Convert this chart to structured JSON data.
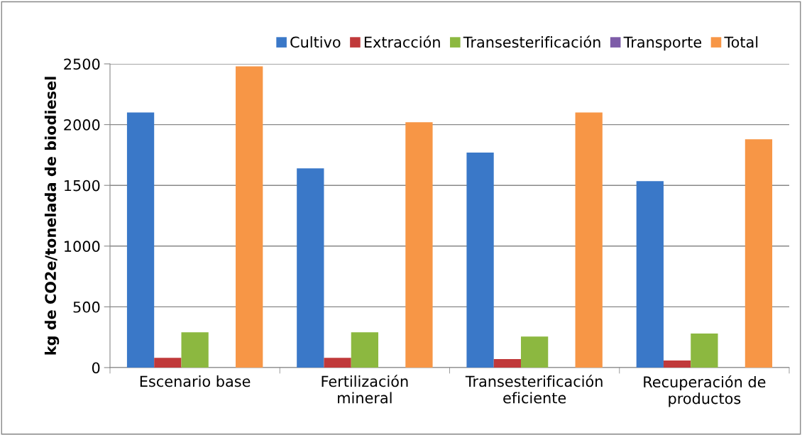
{
  "chart_data": {
    "type": "bar",
    "ylabel": "kg de CO2e/tonelada de biodiesel",
    "categories": [
      "Escenario base",
      "Fertilización\nmineral",
      "Transesterificación\neficiente",
      "Recuperación de\nproductos"
    ],
    "series": [
      {
        "name": "Cultivo",
        "color": "#3a78c8",
        "values": [
          2100,
          1640,
          1770,
          1535
        ]
      },
      {
        "name": "Extracción",
        "color": "#c0393a",
        "values": [
          80,
          80,
          70,
          58
        ]
      },
      {
        "name": "Transesterificación",
        "color": "#8cb840",
        "values": [
          290,
          290,
          255,
          280
        ]
      },
      {
        "name": "Transporte",
        "color": "#7d5ca8",
        "values": [
          null,
          null,
          null,
          null
        ]
      },
      {
        "name": "Total",
        "color": "#f79646",
        "values": [
          2480,
          2020,
          2100,
          1880
        ]
      }
    ],
    "ylim": [
      0,
      2500
    ],
    "yticks": [
      0,
      500,
      1000,
      1500,
      2000,
      2500
    ],
    "grid": "y",
    "legend": "top"
  }
}
